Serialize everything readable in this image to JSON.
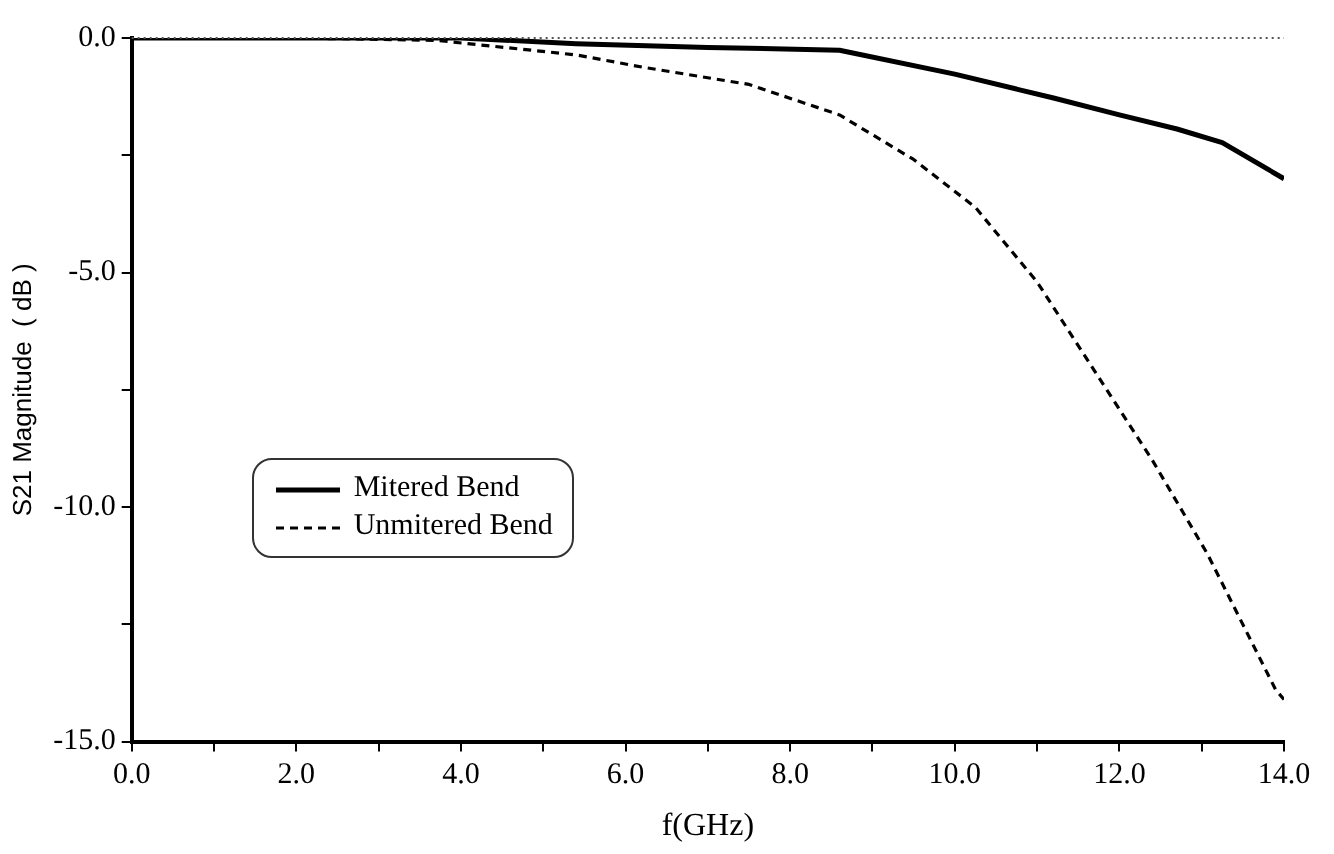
{
  "chart_data": {
    "type": "line",
    "xlabel": "f(GHz)",
    "ylabel": "S21 Magnitude  ( dB )",
    "xlim": [
      0,
      14
    ],
    "ylim": [
      -15,
      0
    ],
    "xticks": [
      {
        "value": 0,
        "label": "0.0"
      },
      {
        "value": 1,
        "label": null
      },
      {
        "value": 2,
        "label": "2.0"
      },
      {
        "value": 3,
        "label": null
      },
      {
        "value": 4,
        "label": "4.0"
      },
      {
        "value": 5,
        "label": null
      },
      {
        "value": 6,
        "label": "6.0"
      },
      {
        "value": 7,
        "label": null
      },
      {
        "value": 8,
        "label": "8.0"
      },
      {
        "value": 9,
        "label": null
      },
      {
        "value": 10,
        "label": "10.0"
      },
      {
        "value": 11,
        "label": null
      },
      {
        "value": 12,
        "label": "12.0"
      },
      {
        "value": 13,
        "label": null
      },
      {
        "value": 14,
        "label": "14.0"
      }
    ],
    "yticks": [
      {
        "value": -15,
        "label": "-15.0"
      },
      {
        "value": -12.5,
        "label": null
      },
      {
        "value": -10,
        "label": "-10.0"
      },
      {
        "value": -7.5,
        "label": null
      },
      {
        "value": -5,
        "label": "-5.0"
      },
      {
        "value": -2.5,
        "label": null
      },
      {
        "value": 0,
        "label": "0.0"
      }
    ],
    "grid": false,
    "legend": "bottom left",
    "marker": "none",
    "ref_lines": [
      {
        "axis": "y",
        "value": 0,
        "color": "#555555",
        "line_style": "dotted"
      }
    ],
    "series": [
      {
        "name": "Mitered Bend",
        "color": "#000000",
        "line_style": "solid",
        "x": [
          0,
          2,
          4,
          5.4,
          7,
          8.6,
          10,
          11.2,
          12,
          12.7,
          13.25,
          14
        ],
        "values": [
          0,
          0,
          0,
          -0.12,
          -0.2,
          -0.26,
          -0.77,
          -1.28,
          -1.64,
          -1.94,
          -2.23,
          -3.0
        ]
      },
      {
        "name": "Unmitered Bend",
        "color": "#000000",
        "line_style": "dashed",
        "x": [
          0,
          2,
          3.7,
          5.4,
          6.2,
          7.5,
          8.6,
          9.5,
          10.25,
          11,
          11.7,
          12.4,
          13.07,
          13.9,
          14
        ],
        "values": [
          0,
          0,
          -0.05,
          -0.36,
          -0.62,
          -0.99,
          -1.64,
          -2.59,
          -3.61,
          -5.2,
          -7.1,
          -9.0,
          -11.0,
          -13.9,
          -14.1
        ]
      }
    ]
  }
}
